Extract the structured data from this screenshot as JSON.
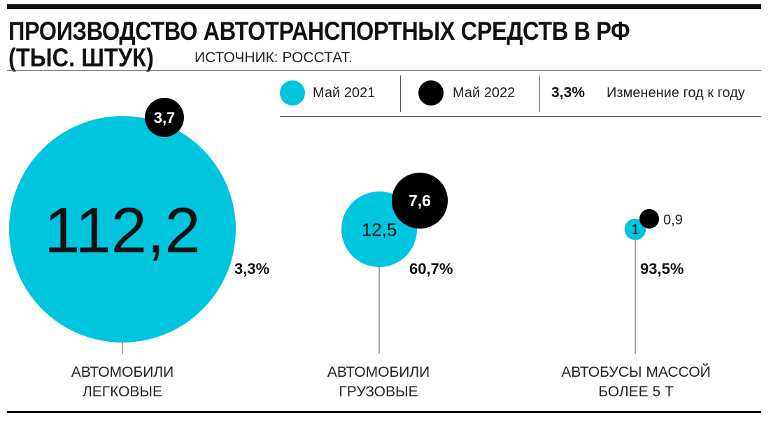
{
  "header": {
    "title_line1": "ПРОИЗВОДСТВО АВТОТРАНСПОРТНЫХ СРЕДСТВ В РФ",
    "title_line2": "(ТЫС. ШТУК)",
    "source": "ИСТОЧНИК: РОССТАТ."
  },
  "legend": {
    "series1": "Май 2021",
    "series2": "Май 2022",
    "change_value": "3,3%",
    "change_label": "Изменение год к году"
  },
  "colors": {
    "may2021": "#00C5DF",
    "may2022": "#000000"
  },
  "chart_data": {
    "type": "bubble",
    "title": "ПРОИЗВОДСТВО АВТОТРАНСПОРТНЫХ СРЕДСТВ В РФ (ТЫС. ШТУК)",
    "categories": [
      "АВТОМОБИЛИ ЛЕГКОВЫЕ",
      "АВТОМОБИЛИ ГРУЗОВЫЕ",
      "АВТОБУСЫ МАССОЙ БОЛЕЕ 5 Т"
    ],
    "category_lines": [
      [
        "АВТОМОБИЛИ",
        "ЛЕГКОВЫЕ"
      ],
      [
        "АВТОМОБИЛИ",
        "ГРУЗОВЫЕ"
      ],
      [
        "АВТОБУСЫ МАССОЙ",
        "БОЛЕЕ 5 Т"
      ]
    ],
    "series": [
      {
        "name": "Май 2021",
        "values": [
          112.2,
          12.5,
          1
        ],
        "labels": [
          "112,2",
          "12,5",
          "1"
        ]
      },
      {
        "name": "Май 2022",
        "values": [
          3.7,
          7.6,
          0.9
        ],
        "labels": [
          "3,7",
          "7,6",
          "0,9"
        ]
      }
    ],
    "change_labels": [
      "3,3%",
      "60,7%",
      "93,5%"
    ],
    "legend_position": "top-right"
  }
}
